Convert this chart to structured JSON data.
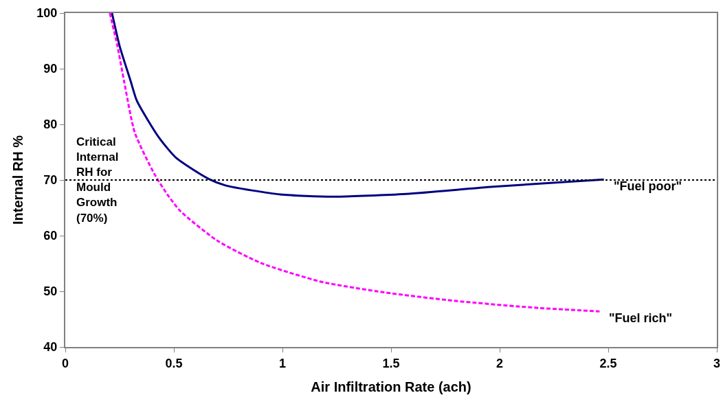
{
  "chart_data": {
    "type": "line",
    "xlabel": "Air Infiltration Rate (ach)",
    "ylabel": "Internal RH %",
    "xlim": [
      0,
      3
    ],
    "xticks": [
      0,
      0.5,
      1,
      1.5,
      2,
      2.5,
      3
    ],
    "ylim": [
      40,
      100
    ],
    "yticks": [
      40,
      50,
      60,
      70,
      80,
      90,
      100
    ],
    "grid": false,
    "legend": false,
    "marker": "none",
    "series": [
      {
        "name": "\"Fuel poor\"",
        "color": "#000080",
        "line_style": "solid",
        "x": [
          0.215,
          0.25,
          0.3,
          0.33,
          0.43,
          0.51,
          0.66,
          0.74,
          0.99,
          1.23,
          1.57,
          1.97,
          2.48
        ],
        "values": [
          100,
          94.1,
          87.9,
          84.2,
          77.7,
          74.0,
          70.2,
          69.0,
          67.4,
          67.0,
          67.5,
          68.8,
          70.1
        ]
      },
      {
        "name": "\"Fuel rich\"",
        "color": "#ff00ff",
        "line_style": "dashed",
        "x": [
          0.205,
          0.24,
          0.27,
          0.32,
          0.41,
          0.47,
          0.53,
          0.7,
          0.9,
          1.18,
          1.47,
          1.79,
          2.18,
          2.46
        ],
        "values": [
          100,
          94.1,
          87.9,
          78.5,
          71.1,
          67.4,
          64.4,
          59.1,
          55.1,
          51.7,
          49.8,
          48.3,
          47.0,
          46.4
        ]
      }
    ],
    "ref_lines": [
      {
        "axis": "y",
        "value": 70,
        "label": "Critical Internal RH for Mould Growth (70%)",
        "color": "#000000",
        "line_style": "dotted"
      }
    ]
  }
}
